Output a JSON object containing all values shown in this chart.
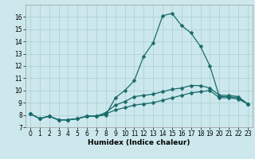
{
  "xlabel": "Humidex (Indice chaleur)",
  "background_color": "#cce8ec",
  "grid_color": "#aacdd4",
  "line_color": "#1a6b6b",
  "x_values": [
    0,
    1,
    2,
    3,
    4,
    5,
    6,
    7,
    8,
    9,
    10,
    11,
    12,
    13,
    14,
    15,
    16,
    17,
    18,
    19,
    20,
    21,
    22,
    23
  ],
  "line1_y": [
    8.1,
    7.7,
    7.9,
    7.6,
    7.6,
    7.7,
    7.9,
    7.9,
    8.0,
    9.4,
    10.0,
    10.8,
    12.8,
    13.9,
    16.1,
    16.3,
    15.3,
    14.7,
    13.6,
    12.0,
    9.5,
    9.5,
    9.4,
    8.9
  ],
  "line2_y": [
    8.1,
    7.7,
    7.9,
    7.6,
    7.6,
    7.7,
    7.9,
    7.9,
    8.2,
    8.8,
    9.1,
    9.5,
    9.6,
    9.7,
    9.9,
    10.1,
    10.2,
    10.4,
    10.4,
    10.2,
    9.6,
    9.6,
    9.5,
    8.9
  ],
  "line3_y": [
    8.1,
    7.7,
    7.9,
    7.6,
    7.6,
    7.7,
    7.9,
    7.9,
    8.1,
    8.4,
    8.6,
    8.8,
    8.9,
    9.0,
    9.2,
    9.4,
    9.6,
    9.8,
    9.9,
    10.0,
    9.4,
    9.4,
    9.3,
    8.9
  ],
  "ylim": [
    7,
    17
  ],
  "xlim": [
    -0.5,
    23.5
  ],
  "yticks": [
    7,
    8,
    9,
    10,
    11,
    12,
    13,
    14,
    15,
    16
  ],
  "xticks": [
    0,
    1,
    2,
    3,
    4,
    5,
    6,
    7,
    8,
    9,
    10,
    11,
    12,
    13,
    14,
    15,
    16,
    17,
    18,
    19,
    20,
    21,
    22,
    23
  ],
  "tick_fontsize": 5.5,
  "xlabel_fontsize": 6.5,
  "marker_size": 2.5,
  "line_width": 0.9
}
